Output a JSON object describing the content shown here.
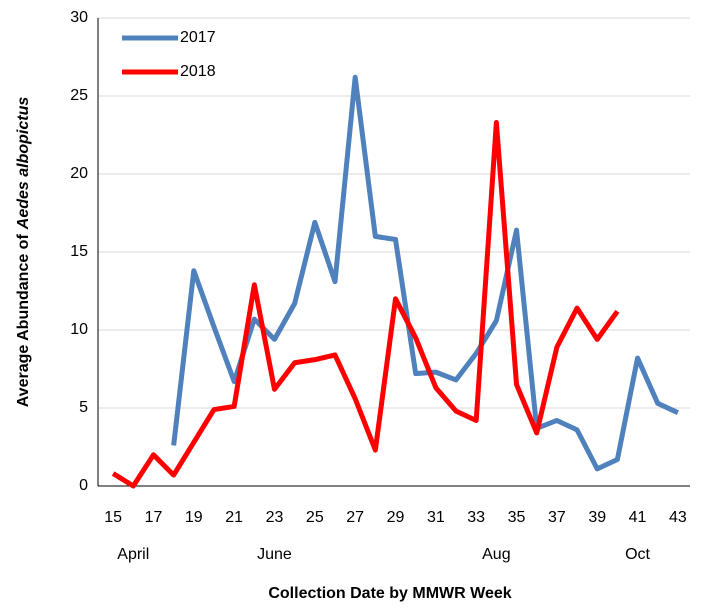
{
  "chart_data": {
    "type": "line",
    "ylabel": [
      "Average Abundance of",
      "Aedes albopictus"
    ],
    "xlabel": "Collection Date by MMWR Week",
    "x": [
      15,
      16,
      17,
      18,
      19,
      20,
      21,
      22,
      23,
      24,
      25,
      26,
      27,
      28,
      29,
      30,
      31,
      32,
      33,
      34,
      35,
      36,
      37,
      38,
      39,
      40,
      41,
      42,
      43
    ],
    "month_labels": [
      null,
      "April",
      null,
      null,
      null,
      null,
      null,
      null,
      "June",
      null,
      null,
      null,
      null,
      null,
      null,
      null,
      null,
      null,
      null,
      "Aug",
      null,
      null,
      null,
      null,
      null,
      null,
      "Oct",
      null,
      null
    ],
    "series": [
      {
        "name": "2017",
        "color": "#4f81bd",
        "values": [
          null,
          null,
          null,
          2.6,
          13.8,
          10.2,
          6.7,
          10.7,
          9.4,
          11.7,
          16.9,
          13.1,
          26.2,
          16.0,
          15.8,
          7.2,
          7.3,
          6.8,
          8.5,
          10.6,
          16.4,
          3.7,
          4.2,
          3.6,
          1.1,
          1.7,
          8.2,
          5.3,
          4.7
        ]
      },
      {
        "name": "2018",
        "color": "#ff0000",
        "values": [
          0.8,
          0,
          2.0,
          0.7,
          2.8,
          4.9,
          5.1,
          12.9,
          6.2,
          7.9,
          8.1,
          8.4,
          5.6,
          2.3,
          12.0,
          9.5,
          6.3,
          4.8,
          4.2,
          23.3,
          6.5,
          3.4,
          8.9,
          11.4,
          9.4,
          11.2,
          null,
          null,
          null
        ]
      }
    ],
    "xlim": [
      14.25,
      43.6
    ],
    "xticks": [
      15,
      17,
      19,
      21,
      23,
      25,
      27,
      29,
      31,
      33,
      35,
      37,
      39,
      41,
      43
    ],
    "ylim": [
      0,
      30
    ],
    "yticks": [
      0,
      5,
      10,
      15,
      20,
      25,
      30
    ],
    "grid": true,
    "legend": "upper left"
  }
}
